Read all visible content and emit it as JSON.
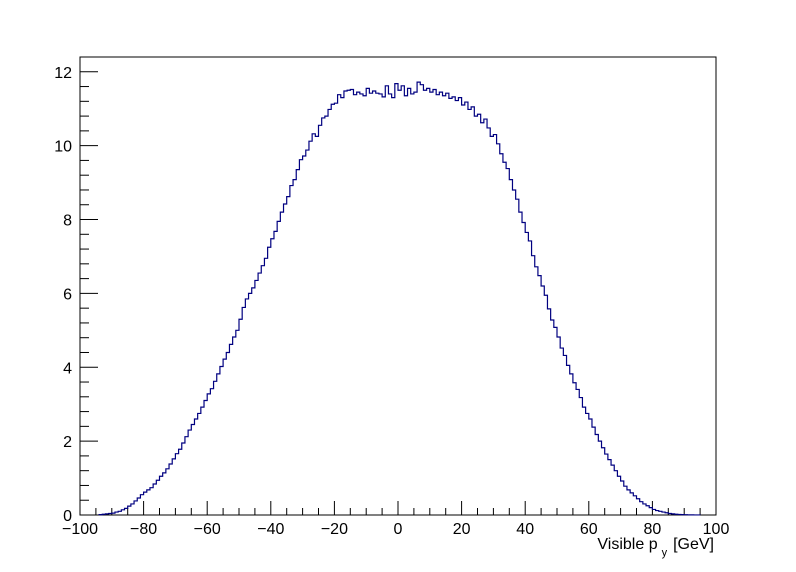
{
  "chart_data": {
    "type": "histogram-step",
    "xlim": [
      -100,
      100
    ],
    "ylim": [
      0,
      12.4
    ],
    "x_major_ticks": [
      -100,
      -80,
      -60,
      -40,
      -20,
      0,
      20,
      40,
      60,
      80,
      100
    ],
    "y_major_ticks": [
      0,
      2,
      4,
      6,
      8,
      10,
      12
    ],
    "xlabel_main": "Visible p",
    "xlabel_sub": "y",
    "xlabel_unit": "[GeV]",
    "ylabel": "",
    "grid": false,
    "line_color": "#000080",
    "bin_width": 1,
    "bins": [
      [
        -94,
        -93,
        0.01
      ],
      [
        -93,
        -92,
        0.02
      ],
      [
        -92,
        -91,
        0.03
      ],
      [
        -91,
        -90,
        0.04
      ],
      [
        -90,
        -89,
        0.05
      ],
      [
        -89,
        -88,
        0.08
      ],
      [
        -88,
        -87,
        0.1
      ],
      [
        -87,
        -86,
        0.14
      ],
      [
        -86,
        -85,
        0.18
      ],
      [
        -85,
        -84,
        0.24
      ],
      [
        -84,
        -83,
        0.3
      ],
      [
        -83,
        -82,
        0.38
      ],
      [
        -82,
        -81,
        0.46
      ],
      [
        -81,
        -80,
        0.55
      ],
      [
        -80,
        -79,
        0.62
      ],
      [
        -79,
        -78,
        0.68
      ],
      [
        -78,
        -77,
        0.74
      ],
      [
        -77,
        -76,
        0.84
      ],
      [
        -76,
        -75,
        0.94
      ],
      [
        -75,
        -74,
        1.05
      ],
      [
        -74,
        -73,
        1.14
      ],
      [
        -73,
        -72,
        1.25
      ],
      [
        -72,
        -71,
        1.38
      ],
      [
        -71,
        -70,
        1.52
      ],
      [
        -70,
        -69,
        1.66
      ],
      [
        -69,
        -68,
        1.78
      ],
      [
        -68,
        -67,
        1.95
      ],
      [
        -67,
        -66,
        2.12
      ],
      [
        -66,
        -65,
        2.3
      ],
      [
        -65,
        -64,
        2.45
      ],
      [
        -64,
        -63,
        2.6
      ],
      [
        -63,
        -62,
        2.75
      ],
      [
        -62,
        -61,
        2.92
      ],
      [
        -61,
        -60,
        3.1
      ],
      [
        -60,
        -59,
        3.28
      ],
      [
        -59,
        -58,
        3.42
      ],
      [
        -58,
        -57,
        3.62
      ],
      [
        -57,
        -56,
        3.82
      ],
      [
        -56,
        -55,
        4.02
      ],
      [
        -55,
        -54,
        4.22
      ],
      [
        -54,
        -53,
        4.4
      ],
      [
        -53,
        -52,
        4.62
      ],
      [
        -52,
        -51,
        4.82
      ],
      [
        -51,
        -50,
        5.0
      ],
      [
        -50,
        -49,
        5.3
      ],
      [
        -49,
        -48,
        5.62
      ],
      [
        -48,
        -47,
        5.85
      ],
      [
        -47,
        -46,
        6.0
      ],
      [
        -46,
        -45,
        6.15
      ],
      [
        -45,
        -44,
        6.35
      ],
      [
        -44,
        -43,
        6.55
      ],
      [
        -43,
        -42,
        6.75
      ],
      [
        -42,
        -41,
        6.95
      ],
      [
        -41,
        -40,
        7.25
      ],
      [
        -40,
        -39,
        7.48
      ],
      [
        -39,
        -38,
        7.68
      ],
      [
        -38,
        -37,
        7.95
      ],
      [
        -37,
        -36,
        8.2
      ],
      [
        -36,
        -35,
        8.42
      ],
      [
        -35,
        -34,
        8.62
      ],
      [
        -34,
        -33,
        8.92
      ],
      [
        -33,
        -32,
        9.08
      ],
      [
        -32,
        -31,
        9.35
      ],
      [
        -31,
        -30,
        9.62
      ],
      [
        -30,
        -29,
        9.72
      ],
      [
        -29,
        -28,
        9.88
      ],
      [
        -28,
        -27,
        10.12
      ],
      [
        -27,
        -26,
        10.32
      ],
      [
        -26,
        -25,
        10.25
      ],
      [
        -25,
        -24,
        10.55
      ],
      [
        -24,
        -23,
        10.75
      ],
      [
        -23,
        -22,
        10.8
      ],
      [
        -22,
        -21,
        10.98
      ],
      [
        -21,
        -20,
        11.12
      ],
      [
        -20,
        -19,
        11.15
      ],
      [
        -19,
        -18,
        11.38
      ],
      [
        -18,
        -17,
        11.3
      ],
      [
        -17,
        -16,
        11.48
      ],
      [
        -16,
        -15,
        11.5
      ],
      [
        -15,
        -14,
        11.52
      ],
      [
        -14,
        -13,
        11.38
      ],
      [
        -13,
        -12,
        11.45
      ],
      [
        -12,
        -11,
        11.4
      ],
      [
        -11,
        -10,
        11.35
      ],
      [
        -10,
        -9,
        11.55
      ],
      [
        -9,
        -8,
        11.42
      ],
      [
        -8,
        -7,
        11.48
      ],
      [
        -7,
        -6,
        11.42
      ],
      [
        -6,
        -5,
        11.4
      ],
      [
        -5,
        -4,
        11.32
      ],
      [
        -4,
        -3,
        11.62
      ],
      [
        -3,
        -2,
        11.4
      ],
      [
        -2,
        -1,
        11.3
      ],
      [
        -1,
        0,
        11.68
      ],
      [
        0,
        1,
        11.5
      ],
      [
        1,
        2,
        11.62
      ],
      [
        2,
        3,
        11.35
      ],
      [
        3,
        4,
        11.55
      ],
      [
        4,
        5,
        11.4
      ],
      [
        5,
        6,
        11.45
      ],
      [
        6,
        7,
        11.72
      ],
      [
        7,
        8,
        11.65
      ],
      [
        8,
        9,
        11.5
      ],
      [
        9,
        10,
        11.55
      ],
      [
        10,
        11,
        11.45
      ],
      [
        11,
        12,
        11.52
      ],
      [
        12,
        13,
        11.38
      ],
      [
        13,
        14,
        11.45
      ],
      [
        14,
        15,
        11.35
      ],
      [
        15,
        16,
        11.42
      ],
      [
        16,
        17,
        11.28
      ],
      [
        17,
        18,
        11.32
      ],
      [
        18,
        19,
        11.22
      ],
      [
        19,
        20,
        11.3
      ],
      [
        20,
        21,
        11.1
      ],
      [
        21,
        22,
        11.18
      ],
      [
        22,
        23,
        10.98
      ],
      [
        23,
        24,
        11.05
      ],
      [
        24,
        25,
        10.8
      ],
      [
        25,
        26,
        10.85
      ],
      [
        26,
        27,
        10.62
      ],
      [
        27,
        28,
        10.72
      ],
      [
        28,
        29,
        10.48
      ],
      [
        29,
        30,
        10.25
      ],
      [
        30,
        31,
        10.3
      ],
      [
        31,
        32,
        10.05
      ],
      [
        32,
        33,
        9.78
      ],
      [
        33,
        34,
        9.55
      ],
      [
        34,
        35,
        9.38
      ],
      [
        35,
        36,
        9.08
      ],
      [
        36,
        37,
        8.8
      ],
      [
        37,
        38,
        8.55
      ],
      [
        38,
        39,
        8.2
      ],
      [
        39,
        40,
        7.92
      ],
      [
        40,
        41,
        7.65
      ],
      [
        41,
        42,
        7.42
      ],
      [
        42,
        43,
        7.02
      ],
      [
        43,
        44,
        6.72
      ],
      [
        44,
        45,
        6.48
      ],
      [
        45,
        46,
        6.2
      ],
      [
        46,
        47,
        5.95
      ],
      [
        47,
        48,
        5.58
      ],
      [
        48,
        49,
        5.28
      ],
      [
        49,
        50,
        5.08
      ],
      [
        50,
        51,
        4.82
      ],
      [
        51,
        52,
        4.52
      ],
      [
        52,
        53,
        4.32
      ],
      [
        53,
        54,
        4.05
      ],
      [
        54,
        55,
        3.82
      ],
      [
        55,
        56,
        3.58
      ],
      [
        56,
        57,
        3.4
      ],
      [
        57,
        58,
        3.18
      ],
      [
        58,
        59,
        2.92
      ],
      [
        59,
        60,
        2.75
      ],
      [
        60,
        61,
        2.6
      ],
      [
        61,
        62,
        2.38
      ],
      [
        62,
        63,
        2.18
      ],
      [
        63,
        64,
        2.0
      ],
      [
        64,
        65,
        1.82
      ],
      [
        65,
        66,
        1.65
      ],
      [
        66,
        67,
        1.5
      ],
      [
        67,
        68,
        1.35
      ],
      [
        68,
        69,
        1.2
      ],
      [
        69,
        70,
        1.05
      ],
      [
        70,
        71,
        0.92
      ],
      [
        71,
        72,
        0.78
      ],
      [
        72,
        73,
        0.68
      ],
      [
        73,
        74,
        0.6
      ],
      [
        74,
        75,
        0.52
      ],
      [
        75,
        76,
        0.44
      ],
      [
        76,
        77,
        0.36
      ],
      [
        77,
        78,
        0.3
      ],
      [
        78,
        79,
        0.25
      ],
      [
        79,
        80,
        0.2
      ],
      [
        80,
        81,
        0.15
      ],
      [
        81,
        82,
        0.12
      ],
      [
        82,
        83,
        0.1
      ],
      [
        83,
        84,
        0.08
      ],
      [
        84,
        85,
        0.06
      ],
      [
        85,
        86,
        0.04
      ],
      [
        86,
        87,
        0.03
      ],
      [
        87,
        88,
        0.02
      ],
      [
        88,
        89,
        0.015
      ],
      [
        89,
        90,
        0.01
      ],
      [
        90,
        91,
        0.008
      ],
      [
        91,
        92,
        0.005
      ],
      [
        92,
        93,
        0.003
      ],
      [
        93,
        94,
        0.002
      ],
      [
        94,
        95,
        0.001
      ]
    ]
  }
}
